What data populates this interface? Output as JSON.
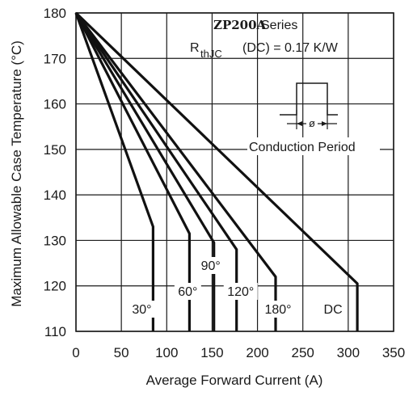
{
  "chart_data": {
    "type": "line",
    "title": "",
    "xlabel": "Average Forward Current (A)",
    "ylabel": "Maximum Allowable Case Temperature (°C)",
    "xlim": [
      0,
      350
    ],
    "ylim": [
      110,
      180
    ],
    "x_ticks": [
      "0",
      "50",
      "100",
      "150",
      "200",
      "250",
      "300",
      "350"
    ],
    "y_ticks": [
      "110",
      "120",
      "130",
      "140",
      "150",
      "160",
      "170",
      "180"
    ],
    "grid": true,
    "annotation": {
      "series_bold": "ZP200A",
      "series_rest": "Series",
      "rth_main": "R",
      "rth_sub": "thJC",
      "rth_rest": "(DC) = 0.17 K/W",
      "conduction_period": "Conduction Period",
      "phi": "ø"
    },
    "series": [
      {
        "name": "30°",
        "x": [
          0,
          85,
          85
        ],
        "y": [
          180,
          133,
          110
        ]
      },
      {
        "name": "60°",
        "x": [
          0,
          125,
          125
        ],
        "y": [
          180,
          131.5,
          110
        ]
      },
      {
        "name": "90°",
        "x": [
          0,
          152,
          152
        ],
        "y": [
          180,
          129.5,
          110
        ]
      },
      {
        "name": "120°",
        "x": [
          0,
          177,
          177
        ],
        "y": [
          180,
          128,
          110
        ]
      },
      {
        "name": "180°",
        "x": [
          0,
          220,
          220
        ],
        "y": [
          180,
          122,
          110
        ]
      },
      {
        "name": "DC",
        "x": [
          0,
          310,
          310
        ],
        "y": [
          180,
          120.5,
          110
        ]
      }
    ]
  }
}
